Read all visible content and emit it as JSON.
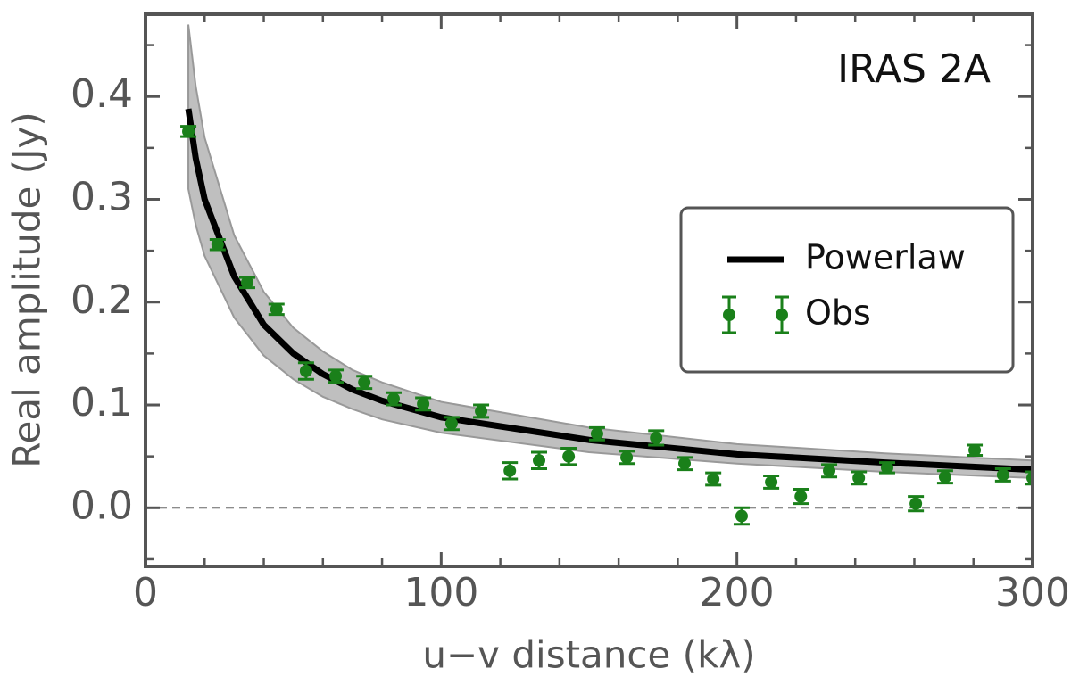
{
  "chart_data": {
    "type": "errorbar",
    "annotation": "IRAS 2A",
    "xlabel": "u−v distance (kλ)",
    "ylabel": "Real amplitude (Jy)",
    "xlim": [
      0,
      300
    ],
    "ylim": [
      -0.057,
      0.48
    ],
    "xticks": [
      0,
      100,
      200,
      300
    ],
    "yticks": [
      {
        "value": 0,
        "label": "0.0"
      },
      0.1,
      0.2,
      0.3,
      0.4
    ],
    "xminorticks": [
      20,
      40,
      60,
      80,
      120,
      140,
      160,
      180,
      220,
      240,
      260,
      280
    ],
    "yminorticks": [
      -0.05,
      0.05,
      0.15,
      0.25,
      0.35,
      0.45
    ],
    "hline": 0,
    "legend": "center right",
    "band": {
      "color": "#a9a9a9",
      "x": [
        14.5,
        17,
        20,
        30,
        40,
        50,
        60,
        70,
        80,
        100,
        150,
        200,
        250,
        300
      ],
      "upper": [
        0.47,
        0.41,
        0.36,
        0.265,
        0.21,
        0.175,
        0.152,
        0.134,
        0.122,
        0.103,
        0.078,
        0.062,
        0.053,
        0.046
      ],
      "lower": [
        0.31,
        0.275,
        0.245,
        0.185,
        0.148,
        0.125,
        0.108,
        0.096,
        0.086,
        0.073,
        0.054,
        0.043,
        0.035,
        0.029
      ]
    },
    "series": [
      {
        "name": "Powerlaw",
        "color": "#000000",
        "x": [
          14.5,
          17,
          20,
          30,
          40,
          50,
          60,
          70,
          80,
          100,
          150,
          200,
          250,
          300
        ],
        "values": [
          0.388,
          0.34,
          0.3,
          0.225,
          0.178,
          0.15,
          0.13,
          0.115,
          0.104,
          0.088,
          0.066,
          0.052,
          0.044,
          0.037
        ]
      },
      {
        "name": "Obs",
        "color": "#1a801a",
        "x": [
          14.5,
          24.4,
          34.4,
          44.3,
          54.3,
          64.3,
          74,
          83.9,
          93.9,
          103.5,
          113.5,
          123.2,
          133.1,
          143.1,
          152.7,
          162.7,
          172.7,
          182.3,
          192,
          201.6,
          211.6,
          221.6,
          231.2,
          241.2,
          250.8,
          260.5,
          270.4,
          280.4,
          290,
          300
        ],
        "values": [
          0.366,
          0.256,
          0.219,
          0.193,
          0.133,
          0.128,
          0.122,
          0.106,
          0.101,
          0.082,
          0.094,
          0.036,
          0.046,
          0.05,
          0.072,
          0.049,
          0.068,
          0.043,
          0.028,
          -0.008,
          0.025,
          0.011,
          0.036,
          0.029,
          0.039,
          0.004,
          0.03,
          0.056,
          0.032,
          0.029
        ],
        "errors": [
          0.005,
          0.005,
          0.005,
          0.005,
          0.008,
          0.006,
          0.006,
          0.006,
          0.006,
          0.006,
          0.006,
          0.008,
          0.008,
          0.008,
          0.006,
          0.006,
          0.007,
          0.006,
          0.006,
          0.008,
          0.006,
          0.007,
          0.006,
          0.006,
          0.005,
          0.007,
          0.006,
          0.005,
          0.006,
          0.006
        ]
      }
    ]
  }
}
